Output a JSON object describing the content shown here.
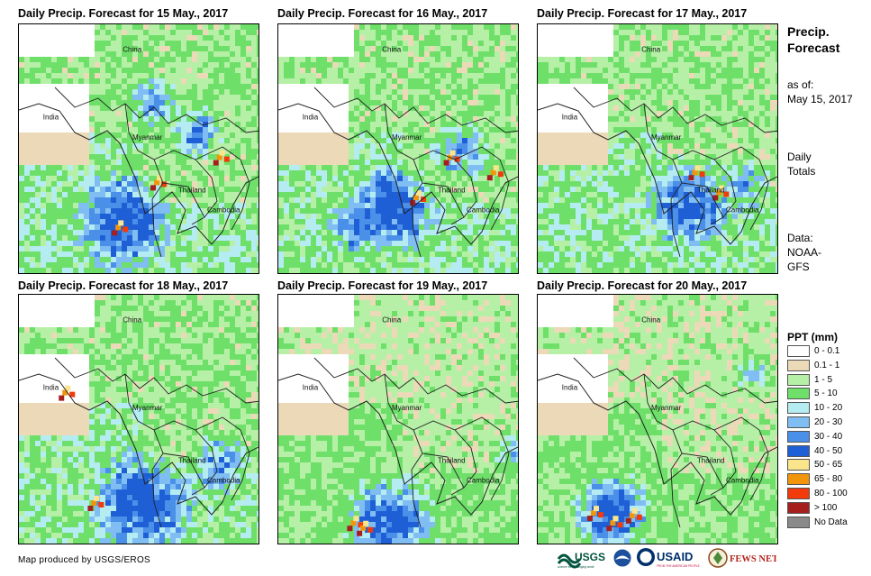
{
  "panels": [
    {
      "title": "Daily Precip. Forecast for 15 May., 2017",
      "country_labels": {
        "china": "China",
        "india": "India",
        "myanmar": "Myanmar",
        "thailand": "Thailand",
        "cambodia": "Cambodia"
      }
    },
    {
      "title": "Daily Precip. Forecast for 16 May., 2017",
      "country_labels": {
        "china": "China",
        "india": "India",
        "myanmar": "Myanmar",
        "thailand": "Thailand",
        "cambodia": "Cambodia"
      }
    },
    {
      "title": "Daily Precip. Forecast for 17 May., 2017",
      "country_labels": {
        "china": "China",
        "india": "India",
        "myanmar": "Myanmar",
        "thailand": "Thailand",
        "cambodia": "Cambodia"
      }
    },
    {
      "title": "Daily Precip. Forecast for 18 May., 2017",
      "country_labels": {
        "china": "China",
        "india": "India",
        "myanmar": "Myanmar",
        "thailand": "Thailand",
        "cambodia": "Cambodia"
      }
    },
    {
      "title": "Daily Precip. Forecast for 19 May., 2017",
      "country_labels": {
        "china": "China",
        "india": "India",
        "myanmar": "Myanmar",
        "thailand": "Thailand",
        "cambodia": "Cambodia"
      }
    },
    {
      "title": "Daily Precip. Forecast for 20 May., 2017",
      "country_labels": {
        "china": "China",
        "india": "India",
        "myanmar": "Myanmar",
        "thailand": "Thailand",
        "cambodia": "Cambodia"
      }
    }
  ],
  "side_info": {
    "heading_line1": "Precip.",
    "heading_line2": "Forecast",
    "asof_line1": "as of:",
    "asof_line2": "May 15, 2017",
    "totals_line1": "Daily",
    "totals_line2": "Totals",
    "data_line1": "Data:",
    "data_line2": "NOAA-",
    "data_line3": "GFS"
  },
  "legend": {
    "title": "PPT (mm)",
    "items": [
      {
        "label": "0 - 0.1",
        "color": "#ffffff"
      },
      {
        "label": "0.1 - 1",
        "color": "#ecd9b8"
      },
      {
        "label": "1 - 5",
        "color": "#b6f0a6"
      },
      {
        "label": "5 - 10",
        "color": "#6ee06a"
      },
      {
        "label": "10 - 20",
        "color": "#b4ecf2"
      },
      {
        "label": "20 - 30",
        "color": "#7fbdf2"
      },
      {
        "label": "30 - 40",
        "color": "#4a8fe8"
      },
      {
        "label": "40 - 50",
        "color": "#1f5fd6"
      },
      {
        "label": "50 - 65",
        "color": "#fbe58c"
      },
      {
        "label": "65 - 80",
        "color": "#f2950a"
      },
      {
        "label": "80 - 100",
        "color": "#f23a0a"
      },
      {
        "label": "> 100",
        "color": "#a51f1f"
      },
      {
        "label": "No Data",
        "color": "#8a8a8a"
      }
    ]
  },
  "credit": "Map produced by USGS/EROS",
  "logos": {
    "usgs": "USGS",
    "usgs_tagline": "science for a changing world",
    "usaid": "USAID",
    "usaid_tagline": "FROM THE AMERICAN PEOPLE",
    "fewsnet": "FEWS NET"
  }
}
